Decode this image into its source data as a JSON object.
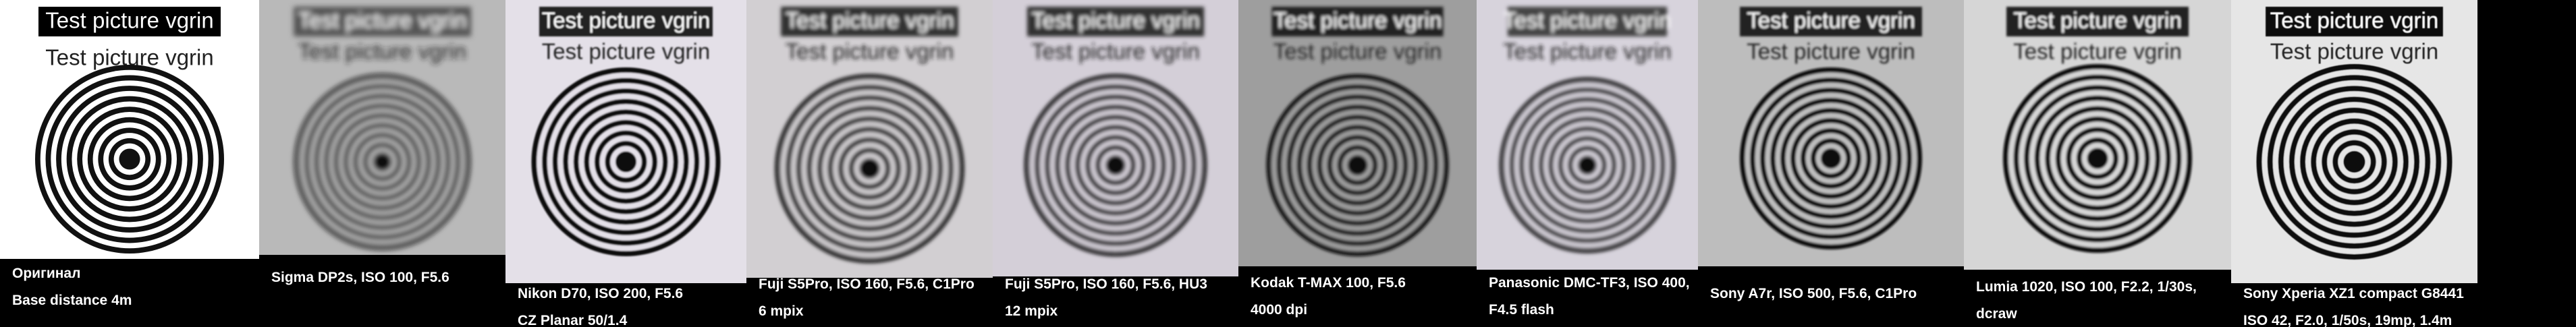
{
  "panels": [
    {
      "box_text": "Test picture vgrin",
      "text": "Test picture vgrin",
      "caption": [
        "Оригинал",
        "Base distance 4m"
      ]
    },
    {
      "box_text": "Test picture vgrin",
      "text": "Test picture vgrin",
      "caption": [
        "Sigma DP2s, ISO 100, F5.6"
      ]
    },
    {
      "box_text": "Test picture vgrin",
      "text": "Test picture vgrin",
      "caption": [
        "Nikon D70, ISO 200, F5.6",
        "CZ Planar 50/1.4"
      ]
    },
    {
      "box_text": "Test picture vgrin",
      "text": "Test picture vgrin",
      "caption": [
        "Fuji S5Pro, ISO 160, F5.6, C1Pro",
        "6 mpix"
      ]
    },
    {
      "box_text": "Test picture vgrin",
      "text": "Test picture vgrin",
      "caption": [
        "Fuji S5Pro, ISO 160, F5.6, HU3",
        "12 mpix"
      ]
    },
    {
      "box_text": "Test picture vgrin",
      "text": "Test picture vgrin",
      "caption": [
        "Kodak T-MAX 100, F5.6",
        "4000 dpi"
      ]
    },
    {
      "box_text": "Test picture vgrin",
      "text": "Test picture vgrin",
      "caption": [
        "Panasonic DMC-TF3, ISO 400,",
        "F4.5 flash"
      ]
    },
    {
      "box_text": "Test picture vgrin",
      "text": "Test picture vgrin",
      "caption": [
        "Sony A7r, ISO 500, F5.6, C1Pro"
      ]
    },
    {
      "box_text": "Test picture vgrin",
      "text": "Test picture vgrin",
      "caption": [
        "Lumia 1020, ISO 100, F2.2, 1/30s,",
        "dcraw"
      ]
    },
    {
      "box_text": "Test picture vgrin",
      "text": "Test picture vgrin",
      "caption": [
        "Sony Xperia XZ1 compact G8441",
        "ISO 42, F2.0, 1/50s, 19mp, 1.4m"
      ]
    }
  ]
}
